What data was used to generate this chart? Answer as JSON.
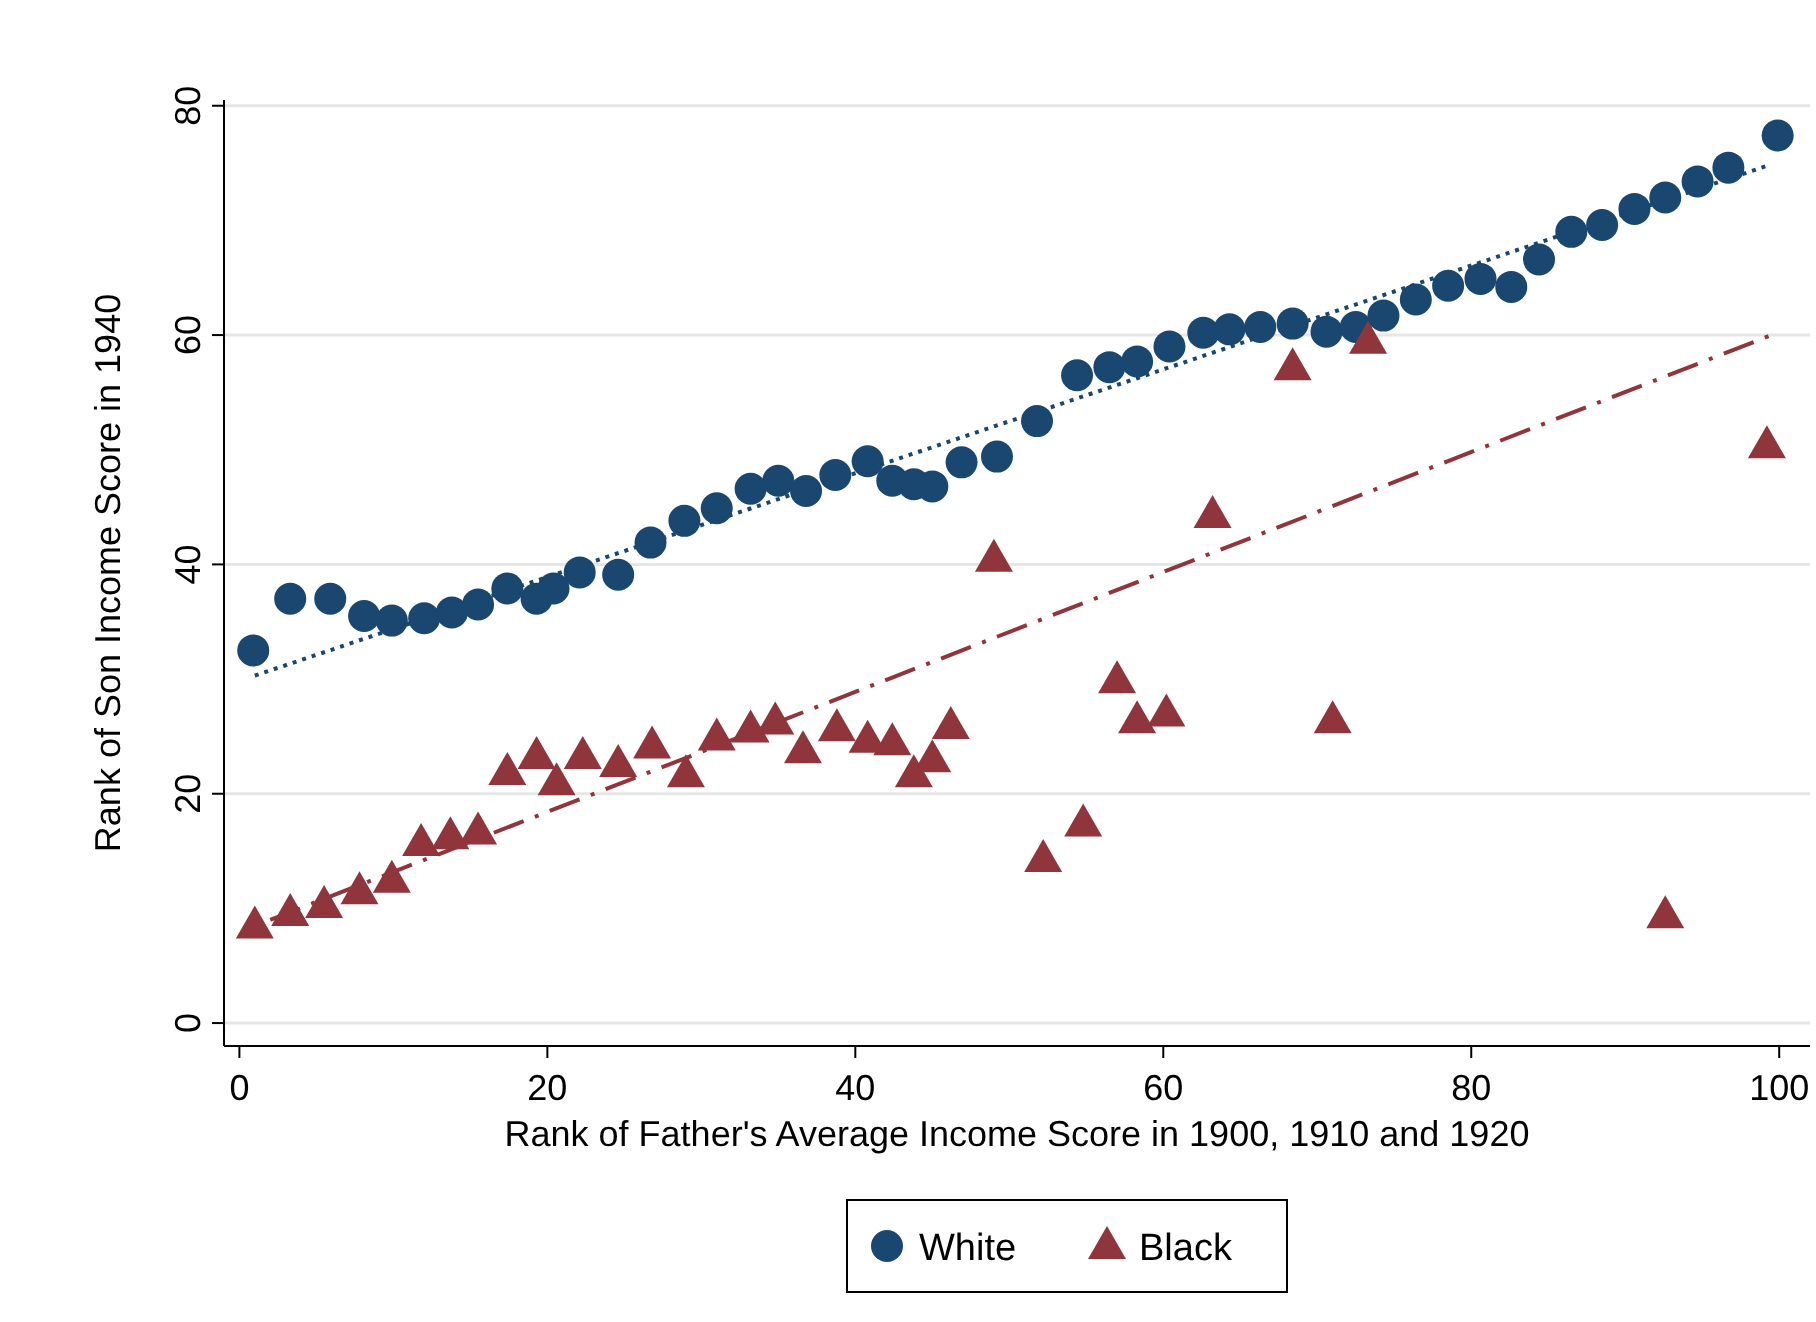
{
  "chart_data": {
    "type": "scatter",
    "xlabel": "Rank of Father's Average Income Score in 1900, 1910 and 1920",
    "ylabel": "Rank of Son Income Score in 1940",
    "xlim": [
      -1,
      102
    ],
    "ylim": [
      -2,
      80.5
    ],
    "xticks": [
      0,
      20,
      40,
      60,
      80,
      100
    ],
    "yticks": [
      0,
      20,
      40,
      60,
      80
    ],
    "grid": "y",
    "legend": "bottom",
    "series": [
      {
        "name": "White",
        "color": "#1a476f",
        "marker": "circle",
        "x": [
          0.9,
          3.3,
          5.9,
          8.1,
          9.9,
          12,
          13.8,
          15.5,
          17.4,
          19.3,
          20.4,
          22.1,
          24.6,
          26.7,
          28.9,
          31,
          33.2,
          35,
          36.8,
          38.7,
          40.8,
          42.4,
          43.8,
          45,
          46.9,
          49.2,
          51.8,
          54.4,
          56.5,
          58.3,
          60.4,
          62.6,
          64.3,
          66.3,
          68.4,
          70.6,
          72.5,
          74.3,
          76.4,
          78.5,
          80.6,
          82.6,
          84.4,
          86.5,
          88.5,
          90.6,
          92.6,
          94.7,
          96.7,
          99.9
        ],
        "values": [
          32.5,
          37,
          37,
          35.5,
          35.1,
          35.3,
          35.8,
          36.5,
          37.9,
          37,
          37.9,
          39.3,
          39.1,
          41.9,
          43.8,
          44.9,
          46.6,
          47.3,
          46.4,
          47.8,
          49,
          47.3,
          47,
          46.8,
          48.9,
          49.4,
          52.5,
          56.5,
          57.2,
          57.7,
          59,
          60.2,
          60.5,
          60.7,
          61,
          60.3,
          60.7,
          61.7,
          63.1,
          64.3,
          64.9,
          64.2,
          66.6,
          69,
          69.6,
          71,
          72,
          73.4,
          74.6,
          77.4
        ]
      },
      {
        "name": "Black",
        "color": "#90353b",
        "marker": "triangle",
        "x": [
          1,
          3.3,
          5.5,
          7.8,
          9.9,
          11.8,
          13.7,
          15.5,
          17.4,
          19.3,
          20.6,
          22.3,
          24.6,
          26.8,
          29,
          31,
          33.2,
          34.8,
          36.6,
          38.8,
          40.8,
          42.4,
          43.8,
          45,
          46.2,
          49,
          52.2,
          54.8,
          57,
          58.3,
          60.2,
          63.2,
          68.4,
          71,
          73.3,
          92.6,
          99.2
        ],
        "values": [
          8.5,
          9.6,
          10.3,
          11.5,
          12.5,
          15.7,
          16.3,
          16.7,
          21.9,
          23.3,
          21,
          23.3,
          22.6,
          24.2,
          21.7,
          24.9,
          25.6,
          26.3,
          23.8,
          25.7,
          24.7,
          24.5,
          21.7,
          23,
          25.9,
          40.5,
          14.3,
          17.4,
          29.9,
          26.4,
          27,
          44.3,
          57.2,
          26.4,
          59.5,
          9.4,
          50.4
        ]
      },
      {
        "type": "line",
        "color": "#1a476f",
        "line_style": "dotted",
        "marker": "none",
        "x": [
          1,
          99.3
        ],
        "values": [
          30.3,
          74.8
        ]
      },
      {
        "type": "line",
        "color": "#90353b",
        "line_style": "dashdot",
        "marker": "none",
        "x": [
          2,
          99.5
        ],
        "values": [
          9,
          60
        ]
      }
    ]
  }
}
